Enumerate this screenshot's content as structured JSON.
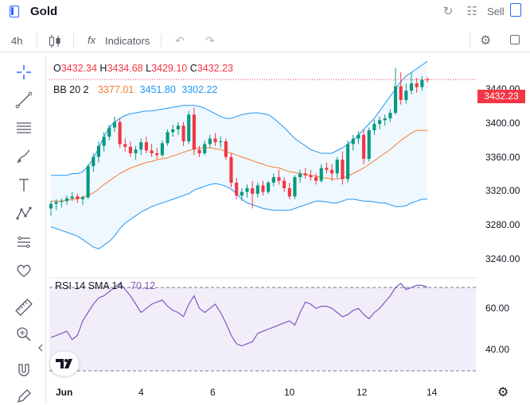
{
  "header": {
    "title": "Gold",
    "sell_label": "Sell"
  },
  "toolbar": {
    "timeframe": "4h",
    "indicators_label": "Indicators",
    "fx_glyph": "fx"
  },
  "colors": {
    "up": "#089981",
    "down": "#f23645",
    "bb_basis": "#f57c2e",
    "bb_band": "#2196f3",
    "rsi_line": "#7e57c2",
    "accent": "#2962ff"
  },
  "legend": {
    "o_label": "O",
    "o_value": "3432.34",
    "h_label": "H",
    "h_value": "3434.68",
    "l_label": "L",
    "l_value": "3429.10",
    "c_label": "C",
    "c_value": "3432.23",
    "bb_label": "BB 20 2",
    "bb_basis": "3377.01",
    "bb_upper": "3451.80",
    "bb_lower": "3302.22",
    "rsi_label": "RSI 14 SMA 14",
    "rsi_value": "70.12"
  },
  "last_price": "3432.23",
  "price_axis": [
    "3440.00",
    "3400.00",
    "3360.00",
    "3320.00",
    "3280.00",
    "3240.00"
  ],
  "rsi_axis": [
    "60.00",
    "40.00"
  ],
  "time_axis": [
    "Jun",
    "4",
    "6",
    "10",
    "12",
    "14"
  ],
  "chart_data": {
    "type": "candlestick",
    "title": "",
    "x_label_positions": [
      0,
      10,
      20,
      30,
      40,
      50
    ],
    "ylim": [
      3225,
      3460
    ],
    "candles": [
      {
        "o": 3292,
        "h": 3300,
        "l": 3284,
        "c": 3297
      },
      {
        "o": 3297,
        "h": 3302,
        "l": 3290,
        "c": 3299
      },
      {
        "o": 3299,
        "h": 3303,
        "l": 3293,
        "c": 3300
      },
      {
        "o": 3300,
        "h": 3306,
        "l": 3296,
        "c": 3303
      },
      {
        "o": 3303,
        "h": 3310,
        "l": 3300,
        "c": 3305
      },
      {
        "o": 3305,
        "h": 3308,
        "l": 3298,
        "c": 3302
      },
      {
        "o": 3302,
        "h": 3306,
        "l": 3296,
        "c": 3304
      },
      {
        "o": 3304,
        "h": 3340,
        "l": 3302,
        "c": 3338
      },
      {
        "o": 3338,
        "h": 3352,
        "l": 3332,
        "c": 3348
      },
      {
        "o": 3348,
        "h": 3365,
        "l": 3342,
        "c": 3360
      },
      {
        "o": 3360,
        "h": 3375,
        "l": 3354,
        "c": 3370
      },
      {
        "o": 3370,
        "h": 3383,
        "l": 3366,
        "c": 3380
      },
      {
        "o": 3380,
        "h": 3392,
        "l": 3375,
        "c": 3386
      },
      {
        "o": 3386,
        "h": 3390,
        "l": 3358,
        "c": 3362
      },
      {
        "o": 3362,
        "h": 3368,
        "l": 3354,
        "c": 3359
      },
      {
        "o": 3359,
        "h": 3365,
        "l": 3348,
        "c": 3352
      },
      {
        "o": 3352,
        "h": 3360,
        "l": 3345,
        "c": 3356
      },
      {
        "o": 3356,
        "h": 3368,
        "l": 3350,
        "c": 3364
      },
      {
        "o": 3364,
        "h": 3370,
        "l": 3352,
        "c": 3355
      },
      {
        "o": 3355,
        "h": 3362,
        "l": 3348,
        "c": 3352
      },
      {
        "o": 3352,
        "h": 3358,
        "l": 3346,
        "c": 3350
      },
      {
        "o": 3350,
        "h": 3366,
        "l": 3348,
        "c": 3363
      },
      {
        "o": 3363,
        "h": 3378,
        "l": 3360,
        "c": 3375
      },
      {
        "o": 3375,
        "h": 3383,
        "l": 3370,
        "c": 3378
      },
      {
        "o": 3378,
        "h": 3386,
        "l": 3372,
        "c": 3382
      },
      {
        "o": 3382,
        "h": 3386,
        "l": 3360,
        "c": 3365
      },
      {
        "o": 3365,
        "h": 3398,
        "l": 3362,
        "c": 3394
      },
      {
        "o": 3394,
        "h": 3402,
        "l": 3350,
        "c": 3356
      },
      {
        "o": 3356,
        "h": 3360,
        "l": 3348,
        "c": 3352
      },
      {
        "o": 3352,
        "h": 3366,
        "l": 3350,
        "c": 3362
      },
      {
        "o": 3362,
        "h": 3372,
        "l": 3358,
        "c": 3368
      },
      {
        "o": 3368,
        "h": 3374,
        "l": 3360,
        "c": 3364
      },
      {
        "o": 3364,
        "h": 3370,
        "l": 3358,
        "c": 3365
      },
      {
        "o": 3365,
        "h": 3368,
        "l": 3345,
        "c": 3348
      },
      {
        "o": 3348,
        "h": 3352,
        "l": 3315,
        "c": 3320
      },
      {
        "o": 3320,
        "h": 3325,
        "l": 3302,
        "c": 3306
      },
      {
        "o": 3306,
        "h": 3314,
        "l": 3300,
        "c": 3310
      },
      {
        "o": 3310,
        "h": 3318,
        "l": 3304,
        "c": 3314
      },
      {
        "o": 3314,
        "h": 3322,
        "l": 3292,
        "c": 3308
      },
      {
        "o": 3308,
        "h": 3320,
        "l": 3304,
        "c": 3317
      },
      {
        "o": 3317,
        "h": 3322,
        "l": 3306,
        "c": 3310
      },
      {
        "o": 3310,
        "h": 3322,
        "l": 3308,
        "c": 3320
      },
      {
        "o": 3320,
        "h": 3330,
        "l": 3316,
        "c": 3326
      },
      {
        "o": 3326,
        "h": 3334,
        "l": 3318,
        "c": 3322
      },
      {
        "o": 3322,
        "h": 3326,
        "l": 3310,
        "c": 3314
      },
      {
        "o": 3314,
        "h": 3320,
        "l": 3302,
        "c": 3305
      },
      {
        "o": 3305,
        "h": 3328,
        "l": 3302,
        "c": 3326
      },
      {
        "o": 3326,
        "h": 3334,
        "l": 3320,
        "c": 3330
      },
      {
        "o": 3330,
        "h": 3336,
        "l": 3324,
        "c": 3328
      },
      {
        "o": 3328,
        "h": 3334,
        "l": 3322,
        "c": 3326
      },
      {
        "o": 3326,
        "h": 3330,
        "l": 3318,
        "c": 3322
      },
      {
        "o": 3322,
        "h": 3340,
        "l": 3320,
        "c": 3336
      },
      {
        "o": 3336,
        "h": 3342,
        "l": 3330,
        "c": 3334
      },
      {
        "o": 3334,
        "h": 3340,
        "l": 3322,
        "c": 3330
      },
      {
        "o": 3330,
        "h": 3348,
        "l": 3325,
        "c": 3345
      },
      {
        "o": 3345,
        "h": 3354,
        "l": 3318,
        "c": 3324
      },
      {
        "o": 3324,
        "h": 3366,
        "l": 3320,
        "c": 3362
      },
      {
        "o": 3362,
        "h": 3372,
        "l": 3355,
        "c": 3368
      },
      {
        "o": 3368,
        "h": 3376,
        "l": 3362,
        "c": 3372
      },
      {
        "o": 3372,
        "h": 3378,
        "l": 3340,
        "c": 3346
      },
      {
        "o": 3346,
        "h": 3380,
        "l": 3343,
        "c": 3377
      },
      {
        "o": 3377,
        "h": 3388,
        "l": 3372,
        "c": 3384
      },
      {
        "o": 3384,
        "h": 3392,
        "l": 3378,
        "c": 3388
      },
      {
        "o": 3388,
        "h": 3394,
        "l": 3382,
        "c": 3390
      },
      {
        "o": 3390,
        "h": 3400,
        "l": 3386,
        "c": 3396
      },
      {
        "o": 3396,
        "h": 3445,
        "l": 3394,
        "c": 3425
      },
      {
        "o": 3425,
        "h": 3440,
        "l": 3405,
        "c": 3410
      },
      {
        "o": 3410,
        "h": 3428,
        "l": 3406,
        "c": 3420
      },
      {
        "o": 3420,
        "h": 3440,
        "l": 3416,
        "c": 3428
      },
      {
        "o": 3428,
        "h": 3434,
        "l": 3418,
        "c": 3424
      },
      {
        "o": 3424,
        "h": 3436,
        "l": 3420,
        "c": 3432
      },
      {
        "o": 3432.34,
        "h": 3434.68,
        "l": 3429.1,
        "c": 3432.23
      }
    ],
    "bb_upper": [
      3328,
      3328,
      3328,
      3328,
      3330,
      3330,
      3332,
      3338,
      3346,
      3358,
      3370,
      3380,
      3386,
      3390,
      3393,
      3395,
      3396,
      3397,
      3398,
      3398,
      3399,
      3400,
      3401,
      3402,
      3403,
      3404,
      3404,
      3404,
      3403,
      3401,
      3398,
      3395,
      3392,
      3390,
      3390,
      3392,
      3394,
      3395,
      3396,
      3396,
      3395,
      3394,
      3390,
      3385,
      3380,
      3374,
      3368,
      3364,
      3360,
      3356,
      3354,
      3352,
      3352,
      3352,
      3355,
      3358,
      3362,
      3366,
      3372,
      3378,
      3384,
      3390,
      3398,
      3406,
      3414,
      3422,
      3430,
      3436,
      3440,
      3444,
      3448,
      3452
    ],
    "bb_basis": [
      3300,
      3300,
      3300,
      3301,
      3302,
      3303,
      3304,
      3306,
      3309,
      3313,
      3318,
      3322,
      3326,
      3330,
      3333,
      3336,
      3338,
      3340,
      3342,
      3343,
      3345,
      3346,
      3347,
      3349,
      3351,
      3353,
      3355,
      3357,
      3358,
      3358,
      3358,
      3357,
      3356,
      3354,
      3352,
      3350,
      3348,
      3346,
      3344,
      3342,
      3340,
      3338,
      3337,
      3336,
      3334,
      3332,
      3331,
      3330,
      3329,
      3328,
      3327,
      3326,
      3325,
      3324,
      3324,
      3325,
      3327,
      3330,
      3333,
      3336,
      3340,
      3344,
      3348,
      3352,
      3356,
      3361,
      3366,
      3370,
      3374,
      3377,
      3377,
      3377
    ],
    "bb_lower": [
      3272,
      3270,
      3268,
      3266,
      3264,
      3262,
      3258,
      3254,
      3250,
      3248,
      3252,
      3256,
      3262,
      3270,
      3276,
      3280,
      3284,
      3288,
      3291,
      3294,
      3296,
      3298,
      3300,
      3302,
      3304,
      3306,
      3308,
      3312,
      3314,
      3316,
      3318,
      3319,
      3318,
      3316,
      3313,
      3308,
      3302,
      3298,
      3296,
      3294,
      3292,
      3291,
      3290,
      3290,
      3290,
      3290,
      3292,
      3294,
      3296,
      3298,
      3300,
      3300,
      3299,
      3298,
      3298,
      3300,
      3302,
      3302,
      3301,
      3300,
      3300,
      3299,
      3298,
      3298,
      3296,
      3294,
      3294,
      3295,
      3298,
      3300,
      3302,
      3302
    ],
    "rsi_ylim": [
      30,
      75
    ],
    "rsi": [
      46,
      47,
      48,
      49,
      45,
      47,
      54,
      58,
      62,
      65,
      66,
      68,
      70,
      72,
      69,
      66,
      62,
      58,
      60,
      62,
      63,
      64,
      61,
      59,
      58,
      56,
      62,
      66,
      60,
      58,
      60,
      62,
      58,
      53,
      47,
      43,
      42,
      43,
      44,
      48,
      49,
      50,
      51,
      52,
      53,
      54,
      52,
      58,
      63,
      62,
      60,
      61,
      61,
      60,
      58,
      56,
      57,
      59,
      60,
      57,
      55,
      58,
      60,
      63,
      66,
      70,
      72,
      69,
      70,
      71,
      71,
      70.12
    ],
    "rsi_upper_band": 70,
    "rsi_lower_band": 30
  }
}
